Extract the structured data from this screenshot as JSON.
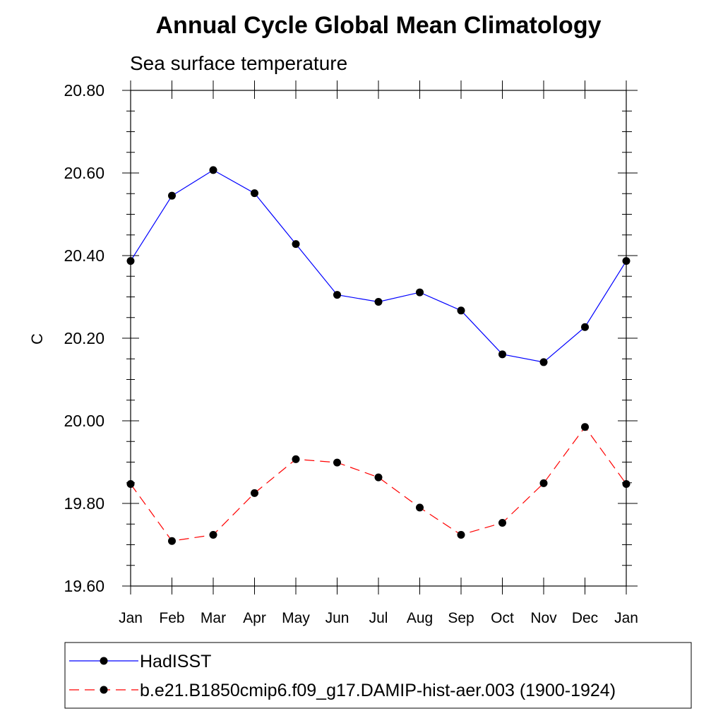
{
  "chart_data": {
    "type": "line",
    "title": "Annual Cycle Global Mean Climatology",
    "subtitle": "Sea surface temperature",
    "ylabel": "C",
    "xlabel": "",
    "categories": [
      "Jan",
      "Feb",
      "Mar",
      "Apr",
      "May",
      "Jun",
      "Jul",
      "Aug",
      "Sep",
      "Oct",
      "Nov",
      "Dec",
      "Jan"
    ],
    "ylim": [
      19.6,
      20.8
    ],
    "yticks": [
      "19.60",
      "19.80",
      "20.00",
      "20.20",
      "20.40",
      "20.60",
      "20.80"
    ],
    "grid": false,
    "legend_position": "bottom",
    "series": [
      {
        "name": "HadISST",
        "color": "#0000ff",
        "line_style": "solid",
        "values": [
          20.387,
          20.545,
          20.607,
          20.551,
          20.428,
          20.305,
          20.288,
          20.311,
          20.267,
          20.161,
          20.142,
          20.227,
          20.387
        ]
      },
      {
        "name": "b.e21.B1850cmip6.f09_g17.DAMIP-hist-aer.003 (1900-1924)",
        "color": "#ff0000",
        "line_style": "dashed",
        "values": [
          19.847,
          19.709,
          19.724,
          19.825,
          19.907,
          19.899,
          19.863,
          19.79,
          19.724,
          19.753,
          19.849,
          19.985,
          19.847
        ]
      }
    ]
  }
}
